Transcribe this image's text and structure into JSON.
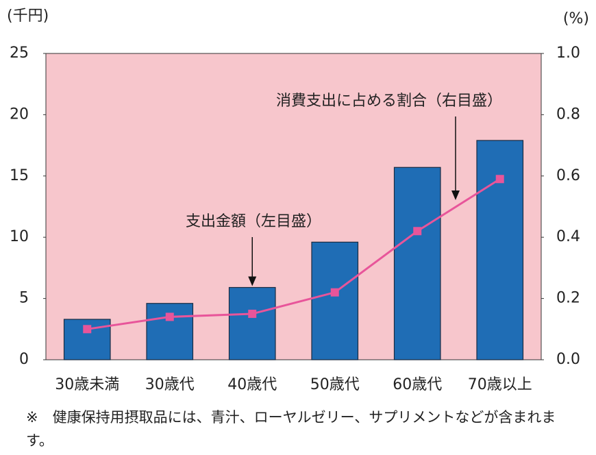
{
  "chart_data": {
    "type": "bar-line",
    "y_unit": "(千円)",
    "y2_unit": "(%)",
    "categories": [
      "30歳未満",
      "30歳代",
      "40歳代",
      "50歳代",
      "60歳代",
      "70歳以上"
    ],
    "series": [
      {
        "name": "支出金額（左目盛）",
        "type": "bar",
        "color": "#1f6db5",
        "values": [
          3.3,
          4.6,
          5.9,
          9.6,
          15.7,
          17.9
        ]
      },
      {
        "name": "消費支出に占める割合（右目盛）",
        "type": "line",
        "axis": "y2",
        "color": "#e8559a",
        "values": [
          0.1,
          0.14,
          0.15,
          0.22,
          0.42,
          0.59
        ]
      }
    ],
    "ylim": [
      0,
      25
    ],
    "yticks": [
      0,
      5,
      10,
      15,
      20,
      25
    ],
    "y2lim": [
      0,
      1.0
    ],
    "y2ticks": [
      {
        "value": 0,
        "label": "0.0"
      },
      0.2,
      0.4,
      0.6,
      0.8,
      {
        "value": 1.0,
        "label": "1.0"
      }
    ],
    "background": "#f7c6cc",
    "footnote": "※　健康保持用摂取品には、青汁、ローヤルゼリー、サプリメントなどが含まれます。"
  }
}
